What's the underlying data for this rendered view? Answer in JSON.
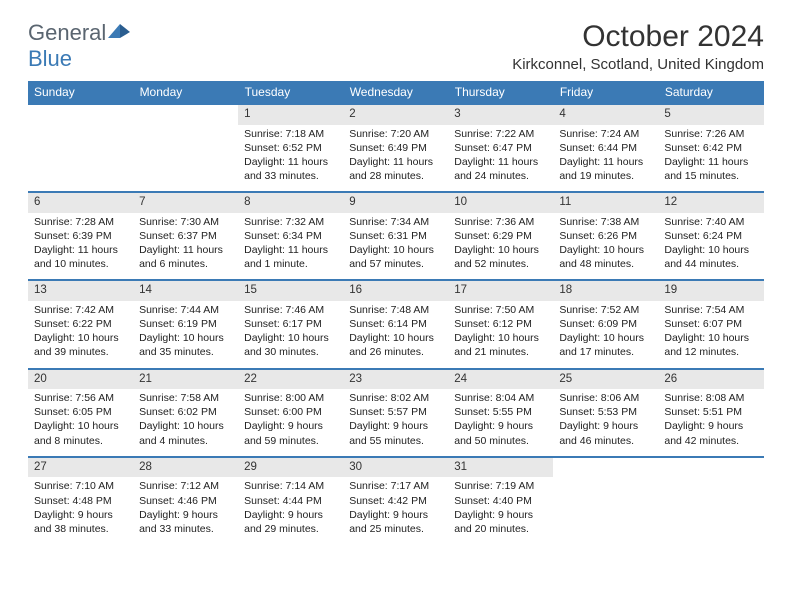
{
  "logo": {
    "text1": "General",
    "text2": "Blue"
  },
  "title": "October 2024",
  "location": "Kirkconnel, Scotland, United Kingdom",
  "colors": {
    "header_bg": "#3b7ab5",
    "daynum_bg": "#e8e8e8"
  },
  "day_names": [
    "Sunday",
    "Monday",
    "Tuesday",
    "Wednesday",
    "Thursday",
    "Friday",
    "Saturday"
  ],
  "weeks": [
    [
      null,
      null,
      {
        "n": "1",
        "sr": "Sunrise: 7:18 AM",
        "ss": "Sunset: 6:52 PM",
        "d1": "Daylight: 11 hours",
        "d2": "and 33 minutes."
      },
      {
        "n": "2",
        "sr": "Sunrise: 7:20 AM",
        "ss": "Sunset: 6:49 PM",
        "d1": "Daylight: 11 hours",
        "d2": "and 28 minutes."
      },
      {
        "n": "3",
        "sr": "Sunrise: 7:22 AM",
        "ss": "Sunset: 6:47 PM",
        "d1": "Daylight: 11 hours",
        "d2": "and 24 minutes."
      },
      {
        "n": "4",
        "sr": "Sunrise: 7:24 AM",
        "ss": "Sunset: 6:44 PM",
        "d1": "Daylight: 11 hours",
        "d2": "and 19 minutes."
      },
      {
        "n": "5",
        "sr": "Sunrise: 7:26 AM",
        "ss": "Sunset: 6:42 PM",
        "d1": "Daylight: 11 hours",
        "d2": "and 15 minutes."
      }
    ],
    [
      {
        "n": "6",
        "sr": "Sunrise: 7:28 AM",
        "ss": "Sunset: 6:39 PM",
        "d1": "Daylight: 11 hours",
        "d2": "and 10 minutes."
      },
      {
        "n": "7",
        "sr": "Sunrise: 7:30 AM",
        "ss": "Sunset: 6:37 PM",
        "d1": "Daylight: 11 hours",
        "d2": "and 6 minutes."
      },
      {
        "n": "8",
        "sr": "Sunrise: 7:32 AM",
        "ss": "Sunset: 6:34 PM",
        "d1": "Daylight: 11 hours",
        "d2": "and 1 minute."
      },
      {
        "n": "9",
        "sr": "Sunrise: 7:34 AM",
        "ss": "Sunset: 6:31 PM",
        "d1": "Daylight: 10 hours",
        "d2": "and 57 minutes."
      },
      {
        "n": "10",
        "sr": "Sunrise: 7:36 AM",
        "ss": "Sunset: 6:29 PM",
        "d1": "Daylight: 10 hours",
        "d2": "and 52 minutes."
      },
      {
        "n": "11",
        "sr": "Sunrise: 7:38 AM",
        "ss": "Sunset: 6:26 PM",
        "d1": "Daylight: 10 hours",
        "d2": "and 48 minutes."
      },
      {
        "n": "12",
        "sr": "Sunrise: 7:40 AM",
        "ss": "Sunset: 6:24 PM",
        "d1": "Daylight: 10 hours",
        "d2": "and 44 minutes."
      }
    ],
    [
      {
        "n": "13",
        "sr": "Sunrise: 7:42 AM",
        "ss": "Sunset: 6:22 PM",
        "d1": "Daylight: 10 hours",
        "d2": "and 39 minutes."
      },
      {
        "n": "14",
        "sr": "Sunrise: 7:44 AM",
        "ss": "Sunset: 6:19 PM",
        "d1": "Daylight: 10 hours",
        "d2": "and 35 minutes."
      },
      {
        "n": "15",
        "sr": "Sunrise: 7:46 AM",
        "ss": "Sunset: 6:17 PM",
        "d1": "Daylight: 10 hours",
        "d2": "and 30 minutes."
      },
      {
        "n": "16",
        "sr": "Sunrise: 7:48 AM",
        "ss": "Sunset: 6:14 PM",
        "d1": "Daylight: 10 hours",
        "d2": "and 26 minutes."
      },
      {
        "n": "17",
        "sr": "Sunrise: 7:50 AM",
        "ss": "Sunset: 6:12 PM",
        "d1": "Daylight: 10 hours",
        "d2": "and 21 minutes."
      },
      {
        "n": "18",
        "sr": "Sunrise: 7:52 AM",
        "ss": "Sunset: 6:09 PM",
        "d1": "Daylight: 10 hours",
        "d2": "and 17 minutes."
      },
      {
        "n": "19",
        "sr": "Sunrise: 7:54 AM",
        "ss": "Sunset: 6:07 PM",
        "d1": "Daylight: 10 hours",
        "d2": "and 12 minutes."
      }
    ],
    [
      {
        "n": "20",
        "sr": "Sunrise: 7:56 AM",
        "ss": "Sunset: 6:05 PM",
        "d1": "Daylight: 10 hours",
        "d2": "and 8 minutes."
      },
      {
        "n": "21",
        "sr": "Sunrise: 7:58 AM",
        "ss": "Sunset: 6:02 PM",
        "d1": "Daylight: 10 hours",
        "d2": "and 4 minutes."
      },
      {
        "n": "22",
        "sr": "Sunrise: 8:00 AM",
        "ss": "Sunset: 6:00 PM",
        "d1": "Daylight: 9 hours",
        "d2": "and 59 minutes."
      },
      {
        "n": "23",
        "sr": "Sunrise: 8:02 AM",
        "ss": "Sunset: 5:57 PM",
        "d1": "Daylight: 9 hours",
        "d2": "and 55 minutes."
      },
      {
        "n": "24",
        "sr": "Sunrise: 8:04 AM",
        "ss": "Sunset: 5:55 PM",
        "d1": "Daylight: 9 hours",
        "d2": "and 50 minutes."
      },
      {
        "n": "25",
        "sr": "Sunrise: 8:06 AM",
        "ss": "Sunset: 5:53 PM",
        "d1": "Daylight: 9 hours",
        "d2": "and 46 minutes."
      },
      {
        "n": "26",
        "sr": "Sunrise: 8:08 AM",
        "ss": "Sunset: 5:51 PM",
        "d1": "Daylight: 9 hours",
        "d2": "and 42 minutes."
      }
    ],
    [
      {
        "n": "27",
        "sr": "Sunrise: 7:10 AM",
        "ss": "Sunset: 4:48 PM",
        "d1": "Daylight: 9 hours",
        "d2": "and 38 minutes."
      },
      {
        "n": "28",
        "sr": "Sunrise: 7:12 AM",
        "ss": "Sunset: 4:46 PM",
        "d1": "Daylight: 9 hours",
        "d2": "and 33 minutes."
      },
      {
        "n": "29",
        "sr": "Sunrise: 7:14 AM",
        "ss": "Sunset: 4:44 PM",
        "d1": "Daylight: 9 hours",
        "d2": "and 29 minutes."
      },
      {
        "n": "30",
        "sr": "Sunrise: 7:17 AM",
        "ss": "Sunset: 4:42 PM",
        "d1": "Daylight: 9 hours",
        "d2": "and 25 minutes."
      },
      {
        "n": "31",
        "sr": "Sunrise: 7:19 AM",
        "ss": "Sunset: 4:40 PM",
        "d1": "Daylight: 9 hours",
        "d2": "and 20 minutes."
      },
      null,
      null
    ]
  ]
}
